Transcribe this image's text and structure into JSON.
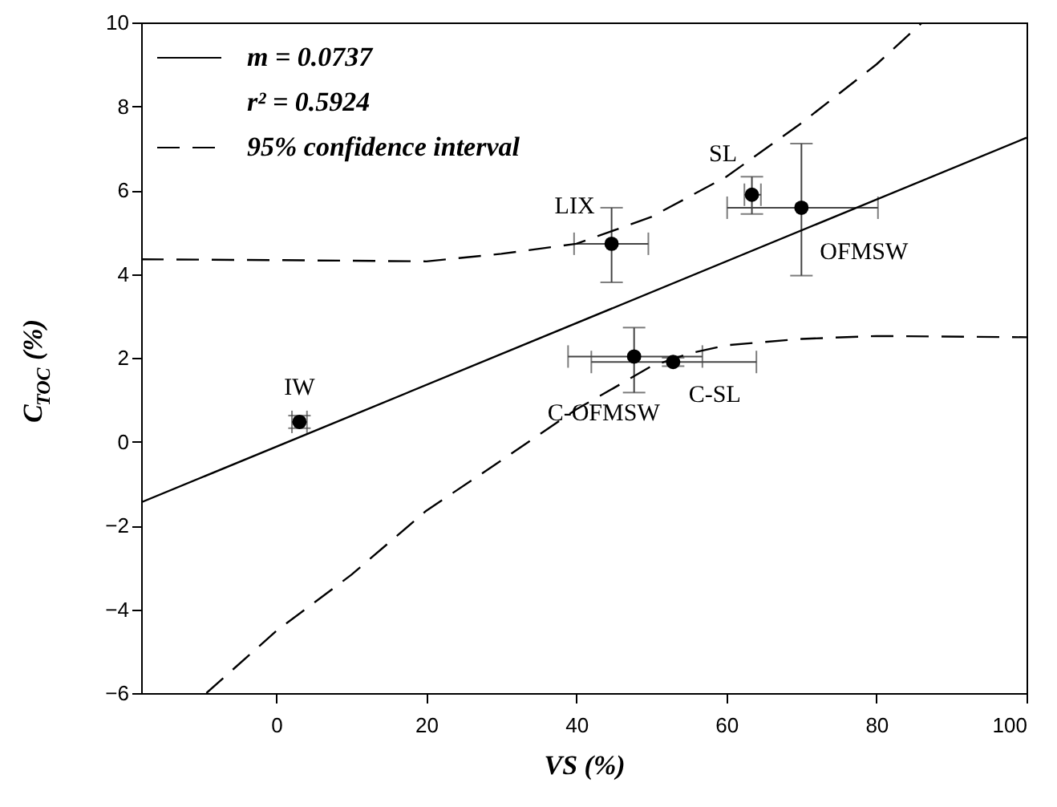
{
  "chart_data": {
    "type": "scatter",
    "xlabel": "VS (%)",
    "ylabel": "C$_{TOC}$ (%)",
    "xlim": [
      -18,
      100
    ],
    "xticks": [
      0,
      20,
      40,
      60,
      80,
      100
    ],
    "ylim": [
      -6,
      10
    ],
    "yticks": [
      -6,
      -4,
      -2,
      0,
      2,
      4,
      6,
      8,
      10
    ],
    "grid": false,
    "legend": "top left",
    "series": [
      {
        "type": "scatter",
        "marker": "circle",
        "color": "#000000",
        "x": [
          3.1,
          44.7,
          63.4,
          70.0,
          47.7,
          52.9
        ],
        "values": [
          0.47,
          4.72,
          5.89,
          5.58,
          2.03,
          1.9
        ],
        "errors": [
          [
            0.32,
            0.62
          ],
          [
            3.8,
            5.58
          ],
          [
            5.43,
            6.32
          ],
          [
            3.96,
            7.11
          ],
          [
            1.17,
            2.72
          ],
          [
            1.8,
            2.0
          ]
        ],
        "xerrors": [
          [
            2.1,
            4.1
          ],
          [
            39.7,
            49.6
          ],
          [
            62.4,
            64.6
          ],
          [
            60.1,
            80.2
          ],
          [
            38.9,
            56.8
          ],
          [
            42.0,
            64.0
          ]
        ]
      },
      {
        "type": "line",
        "name": "m = 0.0737",
        "color": "#000000",
        "line_style": "solid",
        "x": [
          -18,
          100
        ],
        "values": [
          -1.45,
          7.25
        ]
      },
      {
        "type": "line",
        "name": "95% confidence interval",
        "color": "#000000",
        "line_style": "dashed",
        "x": [
          -18,
          0,
          20,
          30,
          40,
          50,
          60,
          70,
          80,
          86.1
        ],
        "values": [
          4.35,
          4.33,
          4.3,
          4.48,
          4.72,
          5.36,
          6.32,
          7.6,
          9.0,
          10
        ]
      },
      {
        "type": "line",
        "color": "#000000",
        "line_style": "dashed",
        "x": [
          -9.3,
          0,
          10,
          20,
          30,
          40,
          45,
          50,
          55,
          60,
          70,
          80,
          100
        ],
        "values": [
          -6,
          -4.52,
          -3.18,
          -1.65,
          -0.45,
          0.77,
          1.28,
          1.8,
          2.1,
          2.3,
          2.45,
          2.52,
          2.49
        ]
      }
    ],
    "annotations": [
      "r² = 0.5924",
      {
        "text": "IW",
        "x": 3.1,
        "y": 0.47
      },
      {
        "text": "LIX",
        "x": 44.7,
        "y": 4.72
      },
      {
        "text": "SL",
        "x": 63.4,
        "y": 5.89
      },
      {
        "text": "OFMSW",
        "x": 70.0,
        "y": 5.58
      },
      {
        "text": "C-OFMSW",
        "x": 47.7,
        "y": 2.03
      },
      {
        "text": "C-SL",
        "x": 52.9,
        "y": 1.9
      }
    ]
  }
}
